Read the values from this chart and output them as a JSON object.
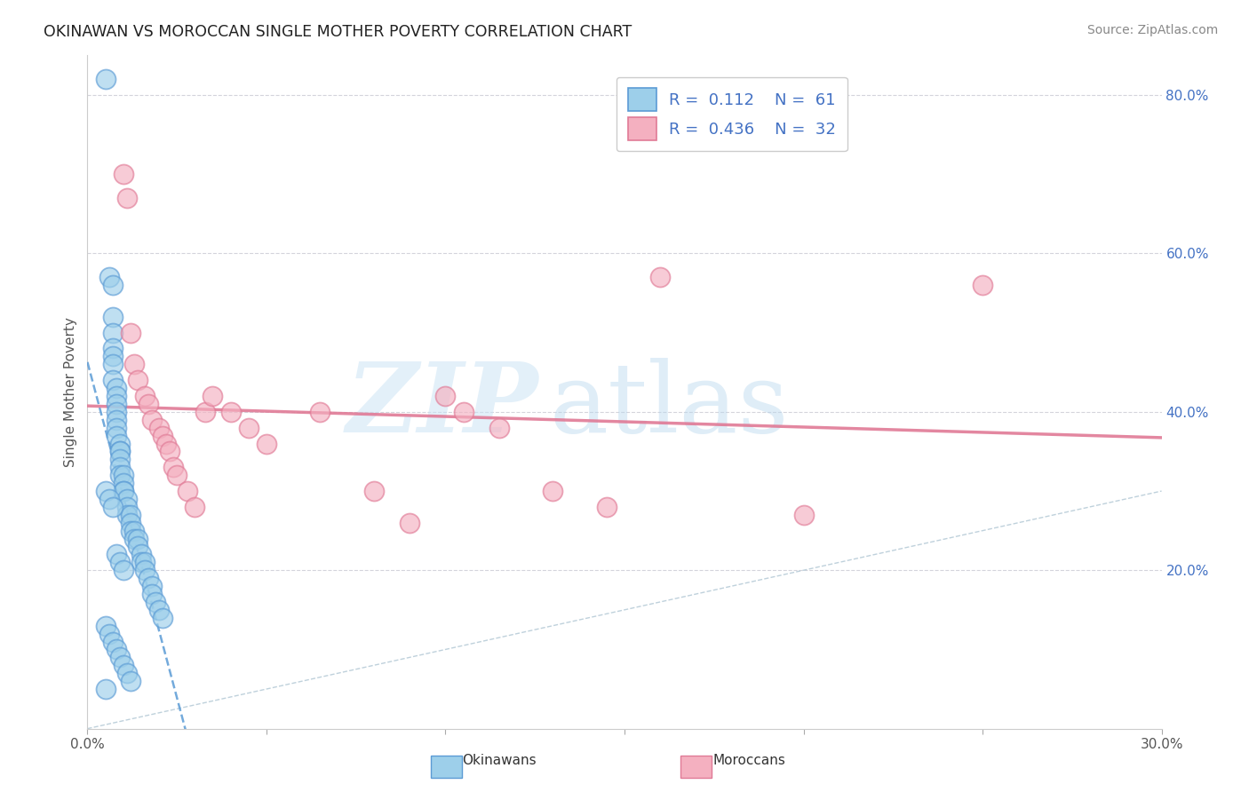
{
  "title": "OKINAWAN VS MOROCCAN SINGLE MOTHER POVERTY CORRELATION CHART",
  "source": "Source: ZipAtlas.com",
  "ylabel": "Single Mother Poverty",
  "xlim": [
    0.0,
    0.3
  ],
  "ylim": [
    0.0,
    0.85
  ],
  "xtick_vals": [
    0.0,
    0.05,
    0.1,
    0.15,
    0.2,
    0.25,
    0.3
  ],
  "xtick_labels": [
    "0.0%",
    "",
    "",
    "",
    "",
    "",
    "30.0%"
  ],
  "ytick_right_vals": [
    0.2,
    0.4,
    0.6,
    0.8
  ],
  "ytick_right_labels": [
    "20.0%",
    "40.0%",
    "60.0%",
    "80.0%"
  ],
  "blue_face": "#9dcfea",
  "blue_edge": "#5b9bd5",
  "pink_face": "#f4b0c0",
  "pink_edge": "#e07a96",
  "blue_trend_color": "#5b9bd5",
  "pink_trend_color": "#e07a96",
  "ref_line_color": "#b0c4d8",
  "grid_color": "#d0d0d8",
  "legend_r1": "0.112",
  "legend_n1": "61",
  "legend_r2": "0.436",
  "legend_n2": "32",
  "legend_label1": "Okinawans",
  "legend_label2": "Moroccans",
  "blue_x": [
    0.005,
    0.006,
    0.007,
    0.007,
    0.007,
    0.007,
    0.007,
    0.007,
    0.007,
    0.008,
    0.008,
    0.008,
    0.008,
    0.008,
    0.008,
    0.008,
    0.009,
    0.009,
    0.009,
    0.009,
    0.009,
    0.009,
    0.01,
    0.01,
    0.01,
    0.01,
    0.011,
    0.011,
    0.011,
    0.012,
    0.012,
    0.012,
    0.013,
    0.013,
    0.014,
    0.014,
    0.015,
    0.015,
    0.016,
    0.016,
    0.017,
    0.018,
    0.018,
    0.019,
    0.02,
    0.021,
    0.005,
    0.006,
    0.007,
    0.008,
    0.009,
    0.01,
    0.011,
    0.012,
    0.005,
    0.006,
    0.007,
    0.008,
    0.009,
    0.01,
    0.005
  ],
  "blue_y": [
    0.82,
    0.57,
    0.56,
    0.52,
    0.5,
    0.48,
    0.47,
    0.46,
    0.44,
    0.43,
    0.42,
    0.41,
    0.4,
    0.39,
    0.38,
    0.37,
    0.36,
    0.35,
    0.35,
    0.34,
    0.33,
    0.32,
    0.32,
    0.31,
    0.3,
    0.3,
    0.29,
    0.28,
    0.27,
    0.27,
    0.26,
    0.25,
    0.25,
    0.24,
    0.24,
    0.23,
    0.22,
    0.21,
    0.21,
    0.2,
    0.19,
    0.18,
    0.17,
    0.16,
    0.15,
    0.14,
    0.13,
    0.12,
    0.11,
    0.1,
    0.09,
    0.08,
    0.07,
    0.06,
    0.3,
    0.29,
    0.28,
    0.22,
    0.21,
    0.2,
    0.05
  ],
  "pink_x": [
    0.01,
    0.011,
    0.012,
    0.013,
    0.014,
    0.016,
    0.017,
    0.018,
    0.02,
    0.021,
    0.022,
    0.023,
    0.024,
    0.025,
    0.028,
    0.03,
    0.033,
    0.035,
    0.04,
    0.045,
    0.05,
    0.065,
    0.08,
    0.09,
    0.1,
    0.105,
    0.115,
    0.13,
    0.145,
    0.16,
    0.2,
    0.25
  ],
  "pink_y": [
    0.7,
    0.67,
    0.5,
    0.46,
    0.44,
    0.42,
    0.41,
    0.39,
    0.38,
    0.37,
    0.36,
    0.35,
    0.33,
    0.32,
    0.3,
    0.28,
    0.4,
    0.42,
    0.4,
    0.38,
    0.36,
    0.4,
    0.3,
    0.26,
    0.42,
    0.4,
    0.38,
    0.3,
    0.28,
    0.57,
    0.27,
    0.56
  ]
}
